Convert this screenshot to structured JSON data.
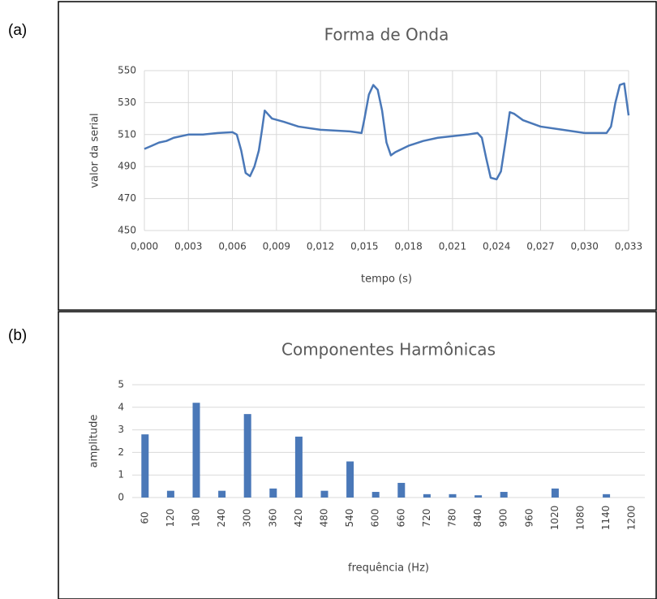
{
  "chart_data": [
    {
      "type": "line",
      "label": "(a)",
      "title": "Forma de Onda",
      "x_label": "tempo (s)",
      "y_label": "valor da serial",
      "color": "#4a78b8",
      "grid": true,
      "x": [
        0,
        0.0005,
        0.001,
        0.0015,
        0.002,
        0.003,
        0.004,
        0.005,
        0.006,
        0.0063,
        0.0066,
        0.0069,
        0.0072,
        0.0075,
        0.0078,
        0.008,
        0.0082,
        0.0084,
        0.0087,
        0.0095,
        0.0105,
        0.012,
        0.014,
        0.0148,
        0.015,
        0.0153,
        0.0156,
        0.0159,
        0.0162,
        0.0165,
        0.0168,
        0.0171,
        0.018,
        0.019,
        0.02,
        0.021,
        0.022,
        0.0227,
        0.023,
        0.0233,
        0.0236,
        0.024,
        0.0243,
        0.0246,
        0.0249,
        0.0252,
        0.0258,
        0.027,
        0.0285,
        0.03,
        0.0315,
        0.0318,
        0.0321,
        0.0324,
        0.0327,
        0.033
      ],
      "values": [
        501,
        503,
        505,
        506,
        508,
        510,
        510,
        511,
        511.5,
        510,
        500,
        486,
        484,
        490,
        500,
        512,
        525,
        523,
        520,
        518,
        515,
        513,
        512,
        511,
        520,
        535,
        541,
        538,
        525,
        505,
        497,
        499,
        503,
        506,
        508,
        509,
        510,
        511,
        508,
        495,
        483,
        482,
        487,
        505,
        524,
        523,
        519,
        515,
        513,
        511,
        511,
        515,
        530,
        541,
        542,
        522
      ],
      "xlim": [
        0,
        0.033
      ],
      "xticks": [
        {
          "value": 0,
          "label": "0,000"
        },
        {
          "value": 0.003,
          "label": "0,003"
        },
        {
          "value": 0.006,
          "label": "0,006"
        },
        {
          "value": 0.009,
          "label": "0,009"
        },
        {
          "value": 0.012,
          "label": "0,012"
        },
        {
          "value": 0.015,
          "label": "0,015"
        },
        {
          "value": 0.018,
          "label": "0,018"
        },
        {
          "value": 0.021,
          "label": "0,021"
        },
        {
          "value": 0.024,
          "label": "0,024"
        },
        {
          "value": 0.027,
          "label": "0,027"
        },
        {
          "value": 0.03,
          "label": "0,030"
        },
        {
          "value": 0.033,
          "label": "0,033"
        }
      ],
      "ylim": [
        450,
        550
      ],
      "yticks": [
        450,
        470,
        490,
        510,
        530,
        550
      ]
    },
    {
      "type": "bar",
      "label": "(b)",
      "title": "Componentes Harmônicas",
      "x_label": "frequência (Hz)",
      "y_label": "amplitude",
      "color": "#4a78b8",
      "grid": true,
      "categories": [
        "60",
        "120",
        "180",
        "240",
        "300",
        "360",
        "420",
        "480",
        "540",
        "600",
        "660",
        "720",
        "780",
        "840",
        "900",
        "960",
        "1020",
        "1080",
        "1140",
        "1200"
      ],
      "values": [
        2.8,
        0.3,
        4.2,
        0.3,
        3.7,
        0.4,
        2.7,
        0.3,
        1.6,
        0.25,
        0.65,
        0.15,
        0.15,
        0.1,
        0.25,
        0,
        0.4,
        0,
        0.15,
        0
      ],
      "ylim": [
        0,
        5
      ],
      "yticks": [
        0,
        1,
        2,
        3,
        4,
        5
      ]
    }
  ]
}
